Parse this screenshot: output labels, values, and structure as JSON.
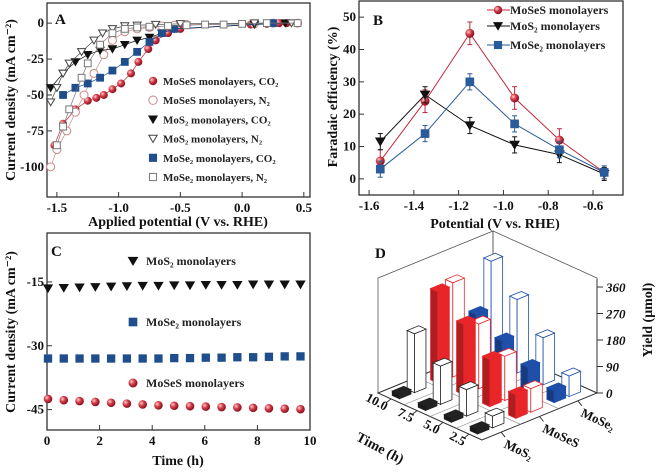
{
  "chart_data": [
    {
      "panel": "A",
      "type": "line",
      "xlabel": "Applied potential (V vs. RHE)",
      "ylabel": "Current density (mA cm⁻²)",
      "xlim": [
        -1.58,
        0.55
      ],
      "ylim": [
        -121,
        14
      ],
      "xticks": [
        -1.5,
        -1.0,
        -0.5,
        0.0,
        0.5
      ],
      "xtick_labels": [
        "-1.5",
        "-1.0",
        "-0.5",
        "0.0",
        "0.5"
      ],
      "yticks": [
        0,
        -25,
        -50,
        -75,
        -100
      ],
      "legend_position": "lower-right",
      "series": [
        {
          "name": "MoSeS monolayers, CO₂",
          "marker": "sphere",
          "color": "#c0283a",
          "x": [
            -1.52,
            -1.45,
            -1.35,
            -1.25,
            -1.18,
            -1.12,
            -1.05,
            -0.98,
            -0.9,
            -0.84,
            -0.76,
            -0.7,
            -0.6,
            -0.5,
            0.07,
            0.2,
            0.3,
            0.36
          ],
          "y": [
            -85,
            -70,
            -60,
            -54,
            -52,
            -50,
            -46,
            -42,
            -35,
            -27,
            -18,
            -12,
            -7,
            -4,
            -1,
            -0.5,
            0,
            0
          ]
        },
        {
          "name": "MoSeS monolayers, N₂",
          "marker": "circle-open",
          "color": "#c98a8a",
          "x": [
            -1.55,
            -1.5,
            -1.42,
            -1.35,
            -1.28,
            -1.2,
            -1.12,
            -1.05,
            -0.95,
            -0.85,
            -0.75,
            -0.65,
            -0.55,
            -0.45,
            0.1,
            0.25,
            0.45
          ],
          "y": [
            -100,
            -88,
            -75,
            -62,
            -50,
            -35,
            -22,
            -12,
            -6,
            -4,
            -3,
            -2,
            -1.5,
            -1,
            -0.5,
            0,
            0
          ]
        },
        {
          "name": "MoS₂ monolayers, CO₂",
          "marker": "tri-down",
          "color": "#111111",
          "x": [
            -1.55,
            -1.45,
            -1.35,
            -1.25,
            -1.15,
            -1.05,
            -0.95,
            -0.85,
            -0.75,
            -0.65,
            -0.55,
            0.1,
            0.35
          ],
          "y": [
            -45,
            -35,
            -27,
            -22,
            -19,
            -18,
            -15,
            -12,
            -10,
            -7,
            -4,
            -1,
            0
          ]
        },
        {
          "name": "MoS₂ monolayers, N₂",
          "marker": "tri-down-open",
          "color": "#444444",
          "x": [
            -1.55,
            -1.5,
            -1.45,
            -1.4,
            -1.3,
            -1.2,
            -1.13,
            -1.05,
            -0.95,
            -0.85,
            -0.7,
            -0.5,
            0.1,
            0.4
          ],
          "y": [
            -55,
            -45,
            -35,
            -28,
            -20,
            -12,
            -7,
            -4,
            -2,
            -1.5,
            -1,
            -0.5,
            0,
            0
          ]
        },
        {
          "name": "MoSe₂ monolayers, CO₂",
          "marker": "square",
          "color": "#1f4e8c",
          "x": [
            -1.45,
            -1.35,
            -1.25,
            -1.15,
            -1.05,
            -0.95,
            -0.85,
            -0.75,
            -0.65,
            -0.55,
            0.25
          ],
          "y": [
            -50,
            -45,
            -42,
            -38,
            -33,
            -27,
            -20,
            -13,
            -7,
            -4,
            0
          ]
        },
        {
          "name": "MoSe₂ monolayers, N₂",
          "marker": "square-open",
          "color": "#777777",
          "x": [
            -1.5,
            -1.45,
            -1.4,
            -1.3,
            -1.25,
            -1.15,
            -1.05,
            -0.95,
            -0.85,
            -0.75,
            -0.6,
            -0.45,
            -0.3,
            -0.15,
            0.0,
            0.2,
            0.45
          ],
          "y": [
            -85,
            -72,
            -60,
            -38,
            -28,
            -15,
            -7,
            -4,
            -3,
            -2.5,
            -2,
            -1.5,
            -1,
            -1,
            -0.5,
            0,
            0
          ]
        }
      ]
    },
    {
      "panel": "B",
      "type": "line",
      "xlabel": "Potential (V vs. RHE)",
      "ylabel": "Faradaic efficiency (%)",
      "xlim": [
        -1.645,
        -0.466
      ],
      "ylim": [
        -5,
        55
      ],
      "xticks": [
        -1.6,
        -1.4,
        -1.2,
        -1.0,
        -0.8,
        -0.6
      ],
      "xtick_labels": [
        "-1.6",
        "-1.4",
        "-1.2",
        "-1.0",
        "-0.8",
        "-0.6"
      ],
      "yticks": [
        0,
        10,
        20,
        30,
        40,
        50
      ],
      "legend_position": "top-right",
      "x": [
        -1.55,
        -1.35,
        -1.15,
        -0.95,
        -0.75,
        -0.55
      ],
      "series": [
        {
          "name": "MoSeS monolayers",
          "marker": "sphere",
          "color": "#c0283a",
          "values": [
            5.5,
            24,
            45,
            25,
            12,
            2
          ],
          "error": [
            3.5,
            3.5,
            3.5,
            3.5,
            3.5,
            2
          ]
        },
        {
          "name": "MoS₂ monolayers",
          "marker": "tri-down",
          "color": "#111111",
          "values": [
            11.5,
            26,
            16.5,
            10.5,
            7.5,
            1.5
          ],
          "error": [
            2.5,
            2.5,
            2.5,
            2.5,
            2.5,
            2
          ]
        },
        {
          "name": "MoSe₂ monolayers",
          "marker": "square",
          "color": "#2a5b9a",
          "values": [
            3,
            14,
            30,
            17,
            9,
            2
          ],
          "error": [
            2.5,
            2.5,
            2.5,
            2.5,
            2.5,
            2
          ]
        }
      ]
    },
    {
      "panel": "C",
      "type": "scatter",
      "xlabel": "Time (h)",
      "ylabel": "Current density (mA cm⁻²)",
      "xlim": [
        0,
        10
      ],
      "ylim": [
        -49.8,
        -3.5
      ],
      "xticks": [
        0,
        2,
        4,
        6,
        8,
        10
      ],
      "yticks": [
        -15,
        -30,
        -45
      ],
      "x": [
        0,
        0.6,
        1.2,
        1.8,
        2.4,
        3.0,
        3.6,
        4.2,
        4.8,
        5.4,
        6.0,
        6.6,
        7.2,
        7.8,
        8.4,
        9.0,
        9.6
      ],
      "series": [
        {
          "name": "MoS₂ monolayers",
          "marker": "tri-down",
          "color": "#111111",
          "values": [
            -16.5,
            -16.4,
            -16.3,
            -16.2,
            -16.1,
            -16.0,
            -15.9,
            -15.9,
            -15.8,
            -15.8,
            -15.7,
            -15.7,
            -15.7,
            -15.6,
            -15.6,
            -15.6,
            -15.6
          ]
        },
        {
          "name": "MoSe₂ monolayers",
          "marker": "square",
          "color": "#1f4e8c",
          "values": [
            -33,
            -33,
            -33,
            -33,
            -33,
            -33,
            -33,
            -33,
            -32.9,
            -32.9,
            -32.8,
            -32.8,
            -32.7,
            -32.7,
            -32.6,
            -32.5,
            -32.5
          ]
        },
        {
          "name": "MoSeS monolayers",
          "marker": "sphere",
          "color": "#c0283a",
          "values": [
            -42.5,
            -42.8,
            -43,
            -43.2,
            -43.4,
            -43.6,
            -43.8,
            -44,
            -44.1,
            -44.2,
            -44.3,
            -44.4,
            -44.5,
            -44.6,
            -44.7,
            -44.8,
            -44.9
          ]
        }
      ]
    },
    {
      "panel": "D",
      "type": "bar3d",
      "zlabel": "Yield (μmol)",
      "ylabel": "Time (h)",
      "zlim": [
        0,
        360
      ],
      "zticks": [
        0,
        90,
        180,
        270,
        360
      ],
      "time_labels": [
        "2.5",
        "5.0",
        "7.5",
        "10.0"
      ],
      "materials": [
        "MoS₂",
        "MoSeS",
        "MoSe₂"
      ],
      "material_colors": [
        "#222222",
        "#e8262a",
        "#1f4fa8"
      ],
      "filled_values": [
        [
          15,
          15,
          15,
          15
        ],
        [
          80,
          160,
          240,
          310
        ],
        [
          40,
          80,
          130,
          180
        ]
      ],
      "open_values": [
        [
          40,
          90,
          130,
          200
        ],
        [
          80,
          150,
          220,
          320
        ],
        [
          70,
          160,
          250,
          340
        ]
      ]
    }
  ],
  "panel_labels": [
    "A",
    "B",
    "C",
    "D"
  ]
}
